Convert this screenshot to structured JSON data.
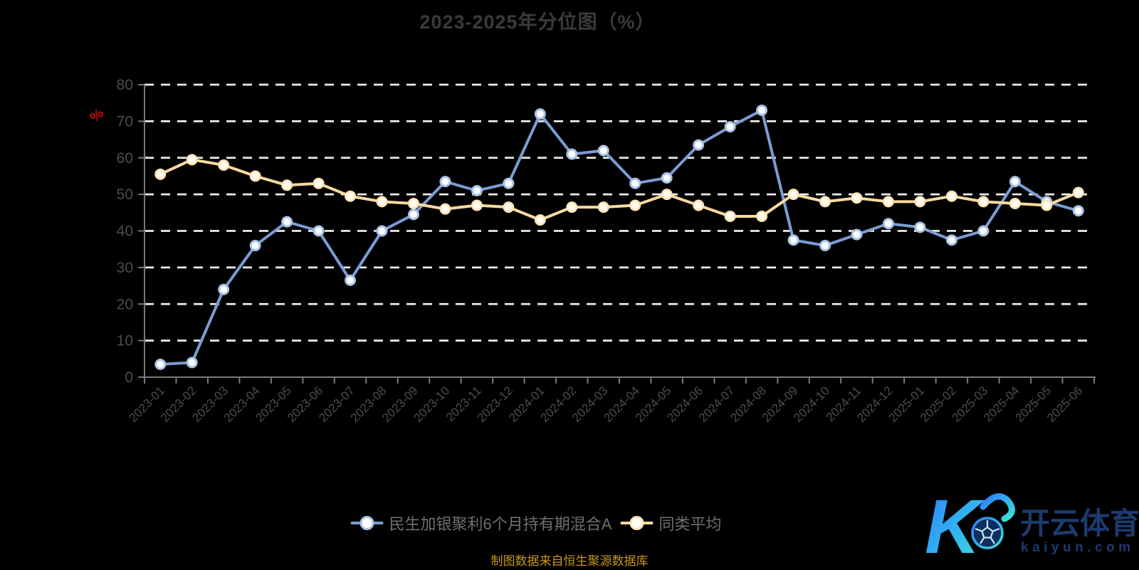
{
  "chart_data": {
    "type": "line",
    "title": "2023-2025年分位图（%）",
    "xlabel": "",
    "ylabel": "%",
    "ylim": [
      0,
      80
    ],
    "yticks": [
      0,
      10,
      20,
      30,
      40,
      50,
      60,
      70,
      80
    ],
    "grid": "horizontal-white-dashed",
    "legend_position": "bottom",
    "x_label_rotation": -45,
    "categories": [
      "2023-01",
      "2023-02",
      "2023-03",
      "2023-04",
      "2023-05",
      "2023-06",
      "2023-07",
      "2023-08",
      "2023-09",
      "2023-10",
      "2023-11",
      "2023-12",
      "2024-01",
      "2024-02",
      "2024-03",
      "2024-04",
      "2024-05",
      "2024-06",
      "2024-07",
      "2024-08",
      "2024-09",
      "2024-10",
      "2024-11",
      "2024-12",
      "2025-01",
      "2025-02",
      "2025-03",
      "2025-04",
      "2025-05",
      "2025-06"
    ],
    "series": [
      {
        "name": "民生加银聚利6个月持有期混合A",
        "color": "#7b9bd2",
        "marker_ring": "#a9c3e6",
        "marker_fill": "#ffffff",
        "values": [
          3.5,
          4,
          24,
          36,
          42.5,
          40,
          26.5,
          40,
          44.5,
          53.5,
          51,
          53,
          72,
          61,
          62,
          53,
          54.5,
          63.5,
          68.5,
          73,
          37.5,
          36,
          39,
          42,
          41,
          37.5,
          40,
          53.5,
          48,
          45.5
        ]
      },
      {
        "name": "同类平均",
        "color": "#f8d9a0",
        "marker_ring": "#fce4ba",
        "marker_fill": "#fffdf4",
        "values": [
          55.5,
          59.5,
          58,
          55,
          52.5,
          53,
          49.5,
          48,
          47.5,
          46,
          47,
          46.5,
          43,
          46.5,
          46.5,
          47,
          50,
          47,
          44,
          44,
          50,
          48,
          49,
          48,
          48,
          49.5,
          48,
          47.5,
          47,
          50.5
        ]
      }
    ]
  },
  "footer": {
    "source_note": "制图数据来自恒生聚源数据库"
  },
  "logo": {
    "brand": "开云体育",
    "domain": "kaiyun.com"
  },
  "colors": {
    "background": "#000000",
    "title": "#3b3b3b",
    "grid_line": "#ececec",
    "axis_line": "#787878",
    "tick_label": "#4d4d4d",
    "unit_label": "#c40b0b",
    "legend_text": "#6f6f6f",
    "source_note": "#c8961e",
    "logo_navy": "#1d3a6e",
    "logo_gradient_start": "#2e7bf6",
    "logo_gradient_mid": "#31b6f2",
    "logo_gradient_end": "#3fe3cf"
  }
}
